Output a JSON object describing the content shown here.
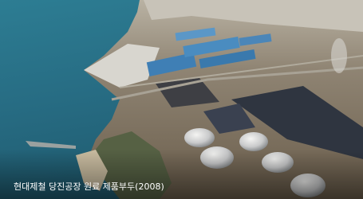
{
  "image": {
    "caption": "현대제철 당진공장 원료 제품부두(2008)"
  }
}
